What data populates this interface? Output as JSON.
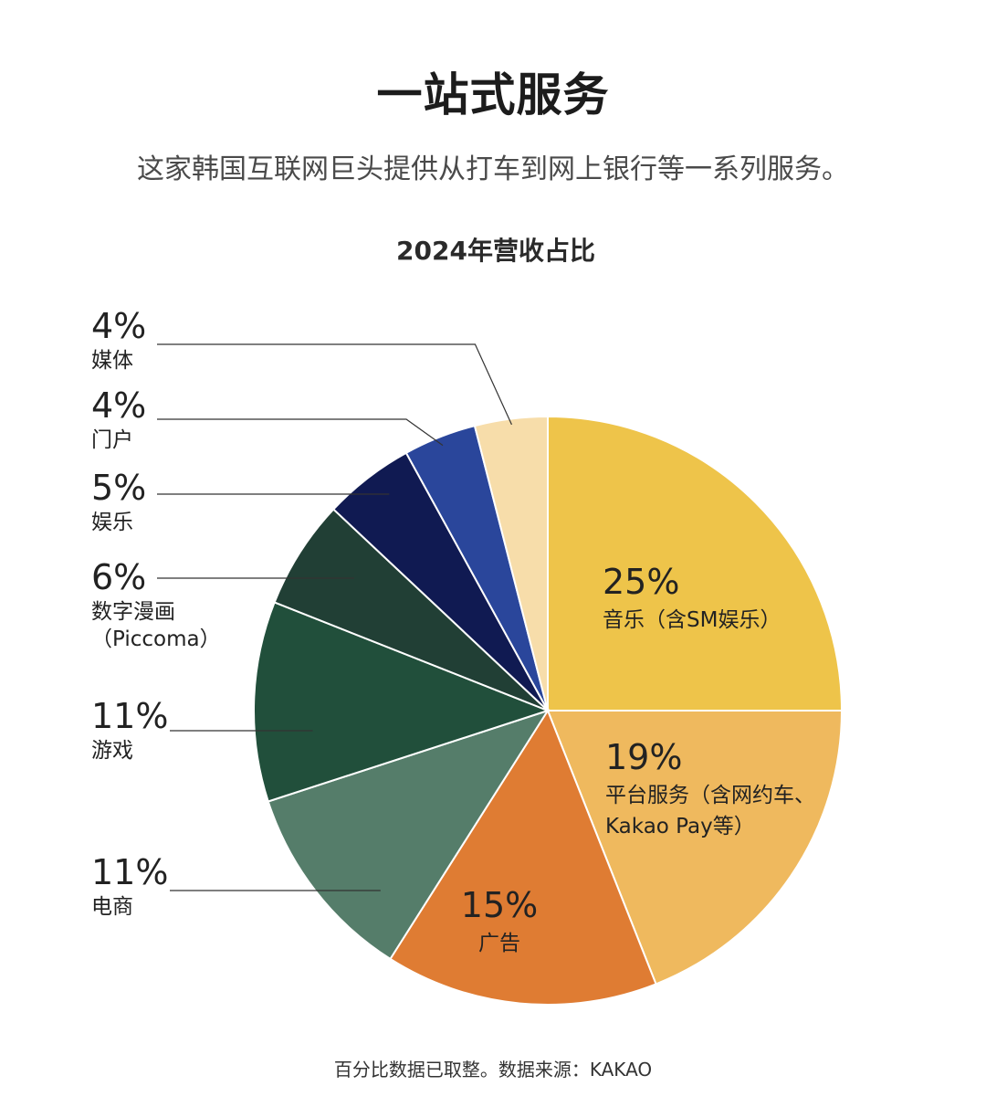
{
  "header": {
    "title": "一站式服务",
    "subtitle": "这家韩国互联网巨头提供从打车到网上银行等一系列服务。"
  },
  "chart_data": {
    "type": "pie",
    "title": "2024年营收占比",
    "slices": [
      {
        "value": 25,
        "percent_label": "25%",
        "label_lines": [
          "音乐（含SM娱乐）"
        ],
        "color": "#EEC44A",
        "label_position": "inside"
      },
      {
        "value": 19,
        "percent_label": "19%",
        "label_lines": [
          "平台服务（含网约车、",
          "Kakao Pay等）"
        ],
        "color": "#EFB95E",
        "label_position": "inside"
      },
      {
        "value": 15,
        "percent_label": "15%",
        "label_lines": [
          "广告"
        ],
        "color": "#DF7C33",
        "label_position": "inside"
      },
      {
        "value": 11,
        "percent_label": "11%",
        "label_lines": [
          "电商"
        ],
        "color": "#557D6A",
        "label_position": "outside-left"
      },
      {
        "value": 11,
        "percent_label": "11%",
        "label_lines": [
          "游戏"
        ],
        "color": "#214F3B",
        "label_position": "outside-left"
      },
      {
        "value": 6,
        "percent_label": "6%",
        "label_lines": [
          "数字漫画",
          "（Piccoma）"
        ],
        "color": "#213F35",
        "label_position": "outside-left"
      },
      {
        "value": 5,
        "percent_label": "5%",
        "label_lines": [
          "娱乐"
        ],
        "color": "#101A52",
        "label_position": "outside-left"
      },
      {
        "value": 4,
        "percent_label": "4%",
        "label_lines": [
          "门户"
        ],
        "color": "#2A469B",
        "label_position": "outside-left"
      },
      {
        "value": 4,
        "percent_label": "4%",
        "label_lines": [
          "媒体"
        ],
        "color": "#F7DDAA",
        "label_position": "outside-left"
      }
    ]
  },
  "footer": {
    "note": "百分比数据已取整。数据来源：KAKAO"
  }
}
